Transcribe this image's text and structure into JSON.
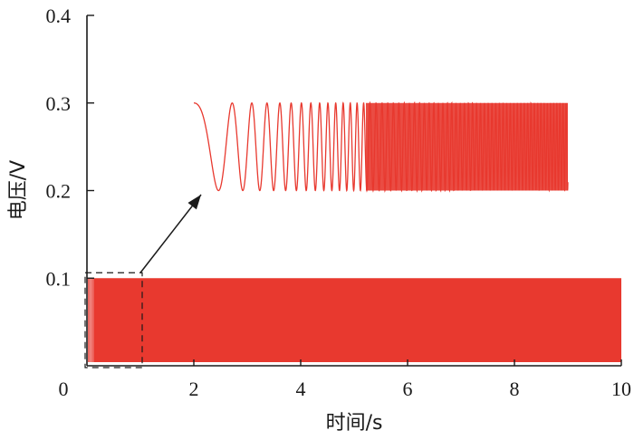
{
  "chart_data": {
    "type": "line",
    "xlabel": "时间/s",
    "ylabel": "电压/V",
    "xlim": [
      0,
      10
    ],
    "ylim": [
      0,
      0.4
    ],
    "x_ticks": [
      "0",
      "2",
      "4",
      "6",
      "8",
      "10"
    ],
    "y_ticks": [
      "0.1",
      "0.2",
      "0.3",
      "0.4"
    ],
    "grid": false,
    "series": [
      {
        "color": "#e8392f",
        "x_range": [
          0,
          10
        ],
        "y_range": [
          0,
          0.1
        ]
      }
    ],
    "inset": {
      "description_source_window": {
        "x": [
          0,
          1
        ],
        "y": [
          0,
          0.1
        ]
      },
      "display_x": [
        2,
        9
      ],
      "display_y": [
        0.2,
        0.3
      ],
      "start_value": 0.3,
      "min_value": 0.2,
      "max_value": 0.3,
      "color": "#e8392f"
    },
    "accent_color": "#e8392f"
  }
}
